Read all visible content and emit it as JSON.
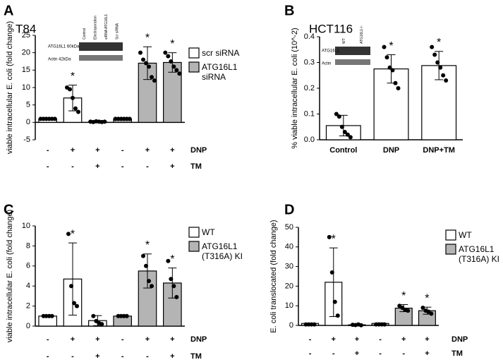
{
  "chart_data": [
    {
      "type": "bar",
      "panel_label": "A",
      "title": "T84",
      "y_label": "viable intracellular E. coli (fold change)",
      "categories": [
        null,
        null,
        null,
        null,
        null,
        null
      ],
      "series": [
        {
          "name": "scr siRNA",
          "color": "#ffffff",
          "values": [
            1,
            7,
            0.2,
            null,
            null,
            null
          ],
          "errors": [
            0.1,
            3.7,
            0.2,
            null,
            null,
            null
          ],
          "points": [
            [
              1,
              1,
              1,
              1,
              1,
              1
            ],
            [
              10,
              9.5,
              7,
              4,
              3
            ],
            [
              0.2,
              0.1,
              0.3,
              0.2,
              0.1,
              0.2
            ],
            null,
            null,
            null
          ]
        },
        {
          "name": "ATG16L1 siRNA",
          "color": "#b4b4b4",
          "values": [
            null,
            null,
            null,
            1,
            17,
            17.2
          ],
          "errors": [
            null,
            null,
            null,
            0.1,
            4.7,
            2.8
          ],
          "points": [
            null,
            null,
            null,
            [
              1,
              1,
              1,
              1,
              1,
              1
            ],
            [
              20,
              18,
              17,
              16,
              13,
              12
            ],
            [
              20,
              19,
              17.5,
              16,
              15,
              14
            ]
          ]
        }
      ],
      "significance": [
        null,
        "*",
        null,
        null,
        "*",
        "*"
      ],
      "ylim": [
        -5,
        25
      ],
      "yticks": [
        -5,
        0,
        5,
        10,
        15,
        20,
        25
      ],
      "conditions": [
        {
          "name": "DNP",
          "values": [
            "-",
            "+",
            "+",
            "-",
            "+",
            "+"
          ]
        },
        {
          "name": "TM",
          "values": [
            "-",
            "-",
            "+",
            "-",
            "-",
            "+"
          ]
        }
      ],
      "inset": {
        "lanes": [
          "Control",
          "Electroporation",
          "siRNA ATG16L1",
          "Scr siRNA"
        ],
        "bands": [
          "ATG16L1 60kDa",
          "Actin 42kDa"
        ]
      }
    },
    {
      "type": "bar",
      "panel_label": "B",
      "title": "HCT116",
      "y_label": "% viable intracellular E. coli (10^-2)",
      "categories": [
        "Control",
        "DNP",
        "DNP+TM"
      ],
      "series": [
        {
          "color": "#ffffff",
          "values": [
            0.055,
            0.275,
            0.288
          ],
          "errors": [
            0.04,
            0.055,
            0.055
          ],
          "points": [
            [
              0.1,
              0.09,
              0.05,
              0.03,
              0.02,
              0.01
            ],
            [
              0.36,
              0.32,
              0.28,
              0.27,
              0.22,
              0.2
            ],
            [
              0.36,
              0.33,
              0.3,
              0.28,
              0.25,
              0.23
            ]
          ]
        }
      ],
      "significance": [
        null,
        "*",
        "*"
      ],
      "ylim": [
        0,
        0.4
      ],
      "yticks": [
        {
          "value": 0,
          "label": "0.0"
        },
        0.1,
        0.2,
        0.3,
        0.4
      ],
      "inset": {
        "lanes": [
          "WT",
          "ATG16L1-/-"
        ],
        "bands": [
          "ATG16L1",
          "Actin"
        ]
      }
    },
    {
      "type": "bar",
      "panel_label": "C",
      "y_label": "viable intracellular E. coli (fold change)",
      "categories": [
        null,
        null,
        null,
        null,
        null,
        null
      ],
      "series": [
        {
          "name": "WT",
          "color": "#ffffff",
          "values": [
            1,
            4.7,
            0.55,
            null,
            null,
            null
          ],
          "errors": [
            0.05,
            3.6,
            0.5,
            null,
            null,
            null
          ],
          "points": [
            [
              1,
              1,
              1,
              1
            ],
            [
              9.2,
              4,
              2.3,
              2
            ],
            [
              1,
              0.5,
              0.3,
              0.2
            ],
            null,
            null,
            null
          ]
        },
        {
          "name": "ATG16L1 (T316A) KI",
          "color": "#b4b4b4",
          "values": [
            null,
            null,
            null,
            1,
            5.5,
            4.3
          ],
          "errors": [
            null,
            null,
            null,
            0.05,
            1.7,
            1.5
          ],
          "points": [
            null,
            null,
            null,
            [
              1,
              1,
              1,
              1
            ],
            [
              7,
              6,
              4.5,
              4
            ],
            [
              6.5,
              4.7,
              4,
              2.9
            ]
          ]
        }
      ],
      "significance": [
        null,
        "*",
        null,
        null,
        "*",
        "*"
      ],
      "ylim": [
        0,
        10
      ],
      "yticks": [
        0,
        2,
        4,
        6,
        8,
        10
      ],
      "conditions": [
        {
          "name": "DNP",
          "values": [
            "-",
            "+",
            "+",
            "-",
            "+",
            "+"
          ]
        },
        {
          "name": "TM",
          "values": [
            "-",
            "-",
            "+",
            "-",
            "-",
            "+"
          ]
        }
      ]
    },
    {
      "type": "bar",
      "panel_label": "D",
      "y_label": "E. coli translocated (fold change)",
      "categories": [
        null,
        null,
        null,
        null,
        null,
        null
      ],
      "series": [
        {
          "name": "WT",
          "color": "#ffffff",
          "values": [
            1,
            22,
            0.3,
            null,
            null,
            null
          ],
          "errors": [
            0.2,
            17.5,
            0.3,
            null,
            null,
            null
          ],
          "points": [
            [
              0.5,
              0.5,
              0.5,
              0.5
            ],
            [
              45,
              27,
              12,
              5
            ],
            [
              0.3,
              0.2,
              0.5,
              0.1
            ],
            null,
            null,
            null
          ]
        },
        {
          "name": "ATG16L1 (T316A) KI",
          "color": "#b4b4b4",
          "values": [
            null,
            null,
            null,
            1,
            8.8,
            7.5
          ],
          "errors": [
            null,
            null,
            null,
            0.3,
            1.8,
            1.8
          ],
          "points": [
            null,
            null,
            null,
            [
              0.5,
              0.5,
              0.5,
              0.5
            ],
            [
              10,
              9,
              8,
              7.5
            ],
            [
              9,
              7.5,
              7,
              6
            ]
          ]
        }
      ],
      "significance": [
        null,
        "*",
        null,
        null,
        "*",
        "*"
      ],
      "ylim": [
        0,
        50
      ],
      "yticks": [
        0,
        10,
        20,
        30,
        40,
        50
      ],
      "conditions": [
        {
          "name": "DNP",
          "values": [
            "-",
            "+",
            "+",
            "-",
            "+",
            "+"
          ]
        },
        {
          "name": "TM",
          "values": [
            "-",
            "-",
            "+",
            "-",
            "-",
            "+"
          ]
        }
      ]
    }
  ]
}
